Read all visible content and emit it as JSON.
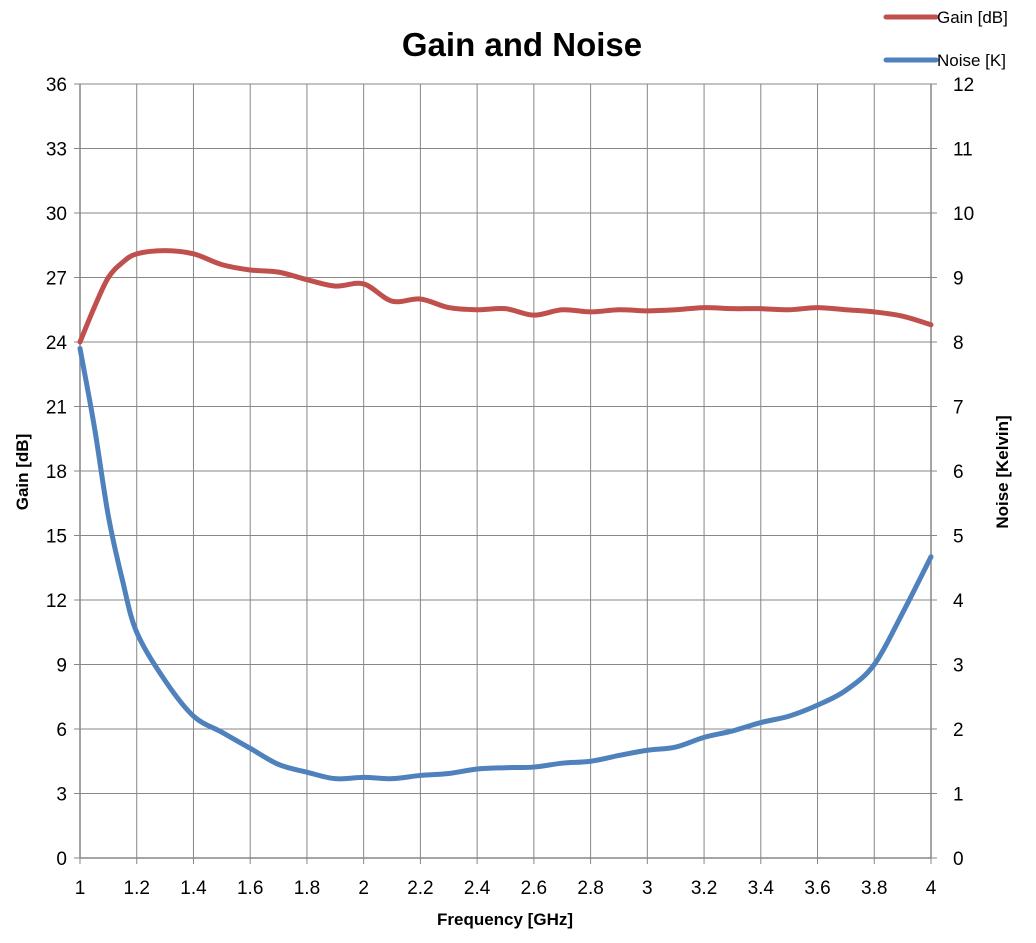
{
  "chart_data": {
    "type": "line",
    "title": "Gain and Noise",
    "xlabel": "Frequency [GHz]",
    "ylabel": "Gain [dB]",
    "y2label": "Noise [Kelvin]",
    "xlim": [
      1,
      4
    ],
    "ylim": [
      0,
      36
    ],
    "y2lim": [
      0,
      12
    ],
    "x_ticks": [
      "1",
      "1.2",
      "1.4",
      "1.6",
      "1.8",
      "2",
      "2.2",
      "2.4",
      "2.6",
      "2.8",
      "3",
      "3.2",
      "3.4",
      "3.6",
      "3.8",
      "4"
    ],
    "y_ticks": [
      "0",
      "3",
      "6",
      "9",
      "12",
      "15",
      "18",
      "21",
      "24",
      "27",
      "30",
      "33",
      "36"
    ],
    "y2_ticks": [
      "0",
      "1",
      "2",
      "3",
      "4",
      "5",
      "6",
      "7",
      "8",
      "9",
      "10",
      "11",
      "12"
    ],
    "grid": true,
    "legend_position": "top-right",
    "x": [
      1.0,
      1.05,
      1.1,
      1.15,
      1.2,
      1.3,
      1.4,
      1.5,
      1.6,
      1.7,
      1.8,
      1.9,
      2.0,
      2.1,
      2.2,
      2.3,
      2.4,
      2.5,
      2.6,
      2.7,
      2.8,
      2.9,
      3.0,
      3.1,
      3.2,
      3.3,
      3.4,
      3.5,
      3.6,
      3.7,
      3.8,
      3.9,
      4.0
    ],
    "series": [
      {
        "name": "Gain [dB]",
        "axis": "left",
        "color": "#c0504d",
        "values": [
          24.0,
          25.6,
          27.0,
          27.7,
          28.1,
          28.25,
          28.1,
          27.6,
          27.35,
          27.25,
          26.9,
          26.6,
          26.7,
          25.9,
          26.0,
          25.6,
          25.5,
          25.55,
          25.25,
          25.5,
          25.4,
          25.5,
          25.45,
          25.5,
          25.6,
          25.55,
          25.55,
          25.5,
          25.6,
          25.5,
          25.4,
          25.2,
          24.8
        ]
      },
      {
        "name": "Noise [K]",
        "axis": "right",
        "color": "#4f81bd",
        "values": [
          7.9,
          6.7,
          5.3,
          4.3,
          3.5,
          2.75,
          2.2,
          1.95,
          1.7,
          1.45,
          1.33,
          1.23,
          1.25,
          1.23,
          1.28,
          1.31,
          1.38,
          1.4,
          1.41,
          1.47,
          1.5,
          1.59,
          1.67,
          1.72,
          1.87,
          1.97,
          2.1,
          2.2,
          2.37,
          2.6,
          3.0,
          3.8,
          4.67
        ]
      }
    ]
  }
}
